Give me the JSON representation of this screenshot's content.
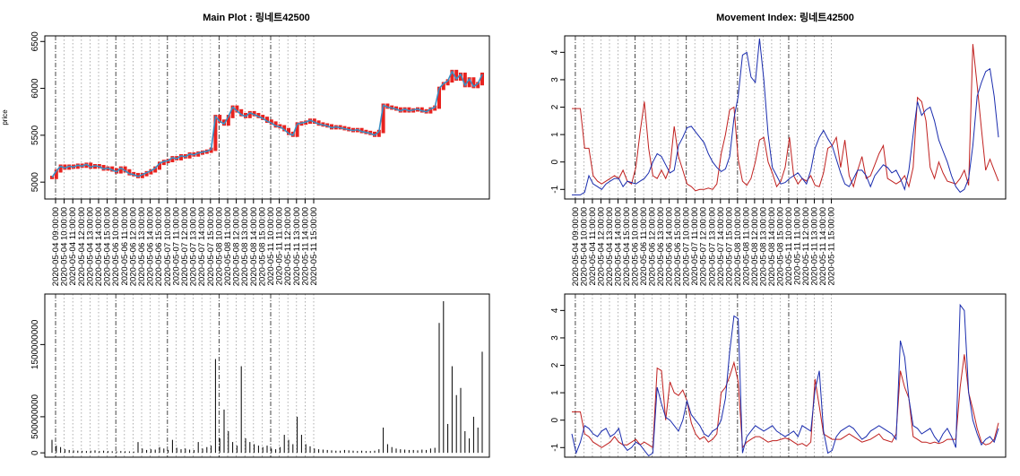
{
  "figure": {
    "main_title": "Main Plot : 링네트42500",
    "movement_title": "Movement Index: 링네트42500"
  },
  "chart_data": [
    {
      "id": "price-panel",
      "type": "line",
      "title": "Main Plot : 링네트42500",
      "ylabel": "price",
      "ylim": [
        4820,
        6560
      ],
      "yticks": [
        5000,
        5500,
        6000,
        6500
      ],
      "grid": true,
      "series": [
        {
          "color": "#3a8fc4",
          "kind": "close-line",
          "values": [
            5050,
            5120,
            5170,
            5150,
            5170,
            5160,
            5180,
            5170,
            5190,
            5160,
            5175,
            5165,
            5140,
            5150,
            5130,
            5110,
            5150,
            5120,
            5090,
            5080,
            5060,
            5080,
            5100,
            5120,
            5150,
            5200,
            5220,
            5230,
            5260,
            5250,
            5280,
            5270,
            5300,
            5290,
            5310,
            5320,
            5330,
            5350,
            5700,
            5650,
            5620,
            5700,
            5800,
            5760,
            5720,
            5700,
            5740,
            5720,
            5700,
            5680,
            5650,
            5630,
            5600,
            5590,
            5560,
            5520,
            5500,
            5620,
            5630,
            5640,
            5660,
            5640,
            5620,
            5610,
            5600,
            5580,
            5590,
            5580,
            5570,
            5560,
            5550,
            5560,
            5540,
            5530,
            5520,
            5500,
            5540,
            5820,
            5800,
            5790,
            5780,
            5760,
            5780,
            5760,
            5770,
            5780,
            5760,
            5750,
            5780,
            5800,
            6000,
            6050,
            6080,
            6180,
            6100,
            6150,
            6030,
            6100,
            6020,
            6050,
            6150
          ]
        },
        {
          "color": "#e8231f",
          "kind": "candle-bars"
        }
      ]
    },
    {
      "id": "volume-panel",
      "type": "bar",
      "ylim": [
        -60000000,
        2200000000
      ],
      "yticks": [
        0,
        500000000,
        1500000000
      ],
      "ytick_labels": [
        "0",
        "500000000",
        "1500000000"
      ],
      "grid": true,
      "series": [
        {
          "color": "#000000",
          "values": [
            180000000,
            100000000,
            80000000,
            50000000,
            40000000,
            35000000,
            30000000,
            28000000,
            25000000,
            30000000,
            35000000,
            25000000,
            30000000,
            25000000,
            22000000,
            20000000,
            25000000,
            22000000,
            20000000,
            18000000,
            150000000,
            60000000,
            40000000,
            50000000,
            45000000,
            80000000,
            60000000,
            40000000,
            180000000,
            70000000,
            50000000,
            60000000,
            45000000,
            40000000,
            150000000,
            60000000,
            80000000,
            100000000,
            1300000000,
            200000000,
            600000000,
            300000000,
            150000000,
            100000000,
            1200000000,
            200000000,
            150000000,
            120000000,
            100000000,
            80000000,
            100000000,
            60000000,
            50000000,
            80000000,
            250000000,
            180000000,
            120000000,
            500000000,
            250000000,
            120000000,
            90000000,
            60000000,
            50000000,
            45000000,
            40000000,
            35000000,
            30000000,
            30000000,
            40000000,
            35000000,
            30000000,
            25000000,
            30000000,
            25000000,
            25000000,
            30000000,
            50000000,
            350000000,
            120000000,
            80000000,
            60000000,
            50000000,
            45000000,
            40000000,
            40000000,
            35000000,
            45000000,
            40000000,
            60000000,
            70000000,
            1800000000,
            2100000000,
            400000000,
            1200000000,
            800000000,
            900000000,
            300000000,
            200000000,
            500000000,
            350000000,
            1400000000
          ]
        }
      ]
    },
    {
      "id": "movement-panel-top",
      "type": "line",
      "title": "Movement Index: 링네트42500",
      "ylim": [
        -1.35,
        4.6
      ],
      "yticks": [
        -1,
        0,
        1,
        2,
        3,
        4
      ],
      "grid": true,
      "series": [
        {
          "color": "#c0201f",
          "values": [
            1.95,
            1.95,
            1.95,
            0.5,
            0.5,
            -0.5,
            -0.7,
            -0.8,
            -0.7,
            -0.6,
            -0.5,
            -0.6,
            -0.3,
            -0.7,
            -0.8,
            -0.2,
            1.1,
            2.2,
            0.5,
            -0.5,
            -0.6,
            -0.3,
            -0.6,
            -0.2,
            1.3,
            0.2,
            -0.3,
            -0.8,
            -0.9,
            -1.05,
            -1.0,
            -1.0,
            -0.95,
            -1.0,
            -0.8,
            0.3,
            1.0,
            1.9,
            2.0,
            0.1,
            -0.7,
            -0.85,
            -0.6,
            0.0,
            0.8,
            0.9,
            0.0,
            -0.4,
            -0.9,
            -0.7,
            -0.2,
            0.9,
            -0.5,
            -0.8,
            -0.6,
            -0.7,
            -0.5,
            -0.85,
            -0.9,
            -0.4,
            0.5,
            0.6,
            0.9,
            -0.2,
            0.8,
            -0.5,
            -0.9,
            -0.3,
            0.2,
            -0.6,
            -0.5,
            -0.1,
            0.3,
            0.6,
            -0.6,
            -0.7,
            -0.8,
            -0.7,
            -0.5,
            -0.9,
            -0.2,
            2.35,
            2.2,
            1.5,
            -0.2,
            -0.6,
            0.0,
            -0.4,
            -0.7,
            -0.75,
            -0.8,
            -0.6,
            -0.3,
            -0.85,
            4.3,
            2.8,
            1.2,
            -0.3,
            0.1,
            -0.3,
            -0.7
          ]
        },
        {
          "color": "#1a2cae",
          "values": [
            -1.2,
            -1.2,
            -1.2,
            -1.1,
            -0.5,
            -0.8,
            -0.9,
            -1.0,
            -0.8,
            -0.7,
            -0.6,
            -0.6,
            -0.9,
            -0.7,
            -0.75,
            -0.8,
            -0.7,
            -0.6,
            -0.4,
            0.0,
            0.3,
            0.2,
            -0.1,
            -0.4,
            -0.3,
            0.6,
            0.9,
            1.25,
            1.3,
            1.1,
            0.9,
            0.7,
            0.3,
            0.0,
            -0.2,
            -0.35,
            -0.25,
            0.2,
            1.6,
            2.4,
            3.9,
            4.0,
            3.1,
            2.9,
            4.5,
            3.0,
            1.0,
            -0.2,
            -0.5,
            -0.8,
            -0.75,
            -0.6,
            -0.5,
            -0.4,
            -0.6,
            -0.8,
            -0.3,
            0.5,
            0.9,
            1.15,
            0.85,
            0.6,
            0.1,
            -0.4,
            -0.8,
            -0.9,
            -0.6,
            -0.3,
            -0.3,
            -0.5,
            -0.9,
            -0.5,
            -0.3,
            -0.1,
            -0.2,
            -0.4,
            -0.3,
            -0.6,
            -1.0,
            -0.3,
            1.0,
            2.2,
            1.7,
            1.9,
            2.0,
            1.5,
            0.8,
            0.4,
            0.0,
            -0.5,
            -0.9,
            -1.1,
            -1.0,
            -0.6,
            0.6,
            2.4,
            2.9,
            3.3,
            3.4,
            2.4,
            0.9
          ]
        }
      ]
    },
    {
      "id": "movement-panel-bottom",
      "type": "line",
      "ylim": [
        -1.35,
        4.6
      ],
      "yticks": [
        -1,
        0,
        1,
        2,
        3,
        4
      ],
      "grid": true,
      "series": [
        {
          "color": "#c0201f",
          "values": [
            0.3,
            0.3,
            0.3,
            -0.5,
            -0.6,
            -0.8,
            -0.9,
            -1.0,
            -0.9,
            -0.8,
            -0.6,
            -0.8,
            -0.9,
            -0.9,
            -0.8,
            -0.7,
            -0.9,
            -0.8,
            -0.9,
            -1.0,
            1.9,
            1.8,
            0.0,
            1.4,
            1.0,
            0.9,
            1.1,
            0.7,
            -0.1,
            -0.5,
            -0.7,
            -0.6,
            -0.8,
            -0.7,
            -0.5,
            1.0,
            1.2,
            1.6,
            2.1,
            1.4,
            -1.0,
            -0.8,
            -0.7,
            -0.6,
            -0.6,
            -0.7,
            -0.8,
            -0.75,
            -0.75,
            -0.7,
            -0.65,
            -0.7,
            -0.8,
            -0.9,
            -0.85,
            -0.95,
            -0.8,
            1.5,
            0.5,
            -0.5,
            -0.6,
            -0.7,
            -0.7,
            -0.7,
            -0.6,
            -0.5,
            -0.6,
            -0.7,
            -0.8,
            -0.75,
            -0.7,
            -0.6,
            -0.5,
            -0.7,
            -0.75,
            -0.8,
            -0.5,
            1.8,
            1.2,
            0.8,
            -0.6,
            -0.7,
            -0.8,
            -0.8,
            -0.85,
            -0.8,
            -0.85,
            -0.8,
            -0.7,
            -0.7,
            -0.7,
            1.2,
            2.4,
            1.0,
            0.4,
            -0.3,
            -0.8,
            -0.9,
            -0.85,
            -0.7,
            -0.1
          ]
        },
        {
          "color": "#1a2cae",
          "values": [
            -0.5,
            -1.2,
            -0.8,
            -0.2,
            -0.3,
            -0.5,
            -0.6,
            -0.4,
            -0.3,
            -0.6,
            -0.5,
            -0.3,
            -0.9,
            -1.1,
            -1.0,
            -0.8,
            -0.9,
            -1.1,
            -1.3,
            -1.2,
            1.2,
            0.6,
            0.1,
            0.0,
            -0.2,
            -0.4,
            0.0,
            0.7,
            0.2,
            0.0,
            -0.2,
            -0.5,
            -0.6,
            -0.4,
            -0.3,
            0.0,
            0.8,
            2.5,
            3.8,
            3.7,
            -1.2,
            -0.6,
            -0.4,
            -0.2,
            -0.3,
            -0.4,
            -0.3,
            -0.2,
            -0.4,
            -0.5,
            -0.6,
            -0.5,
            -0.4,
            -0.6,
            -0.2,
            -0.3,
            -0.4,
            1.1,
            1.8,
            -0.4,
            -1.2,
            -1.1,
            -0.6,
            -0.4,
            -0.3,
            -0.2,
            -0.3,
            -0.5,
            -0.7,
            -0.6,
            -0.4,
            -0.3,
            -0.2,
            -0.3,
            -0.4,
            -0.5,
            -0.7,
            2.9,
            2.3,
            0.8,
            -0.2,
            -0.3,
            -0.5,
            -0.4,
            -0.3,
            -0.6,
            -0.8,
            -0.5,
            -0.3,
            -0.6,
            -1.0,
            4.2,
            4.0,
            1.0,
            0.0,
            -0.5,
            -0.9,
            -0.7,
            -0.6,
            -0.8,
            -0.3
          ]
        }
      ]
    }
  ],
  "time_axis": {
    "tick_labels": [
      "2020-05-04 09:00:00",
      "2020-05-04 10:00:00",
      "2020-05-04 11:00:00",
      "2020-05-04 12:00:00",
      "2020-05-04 13:00:00",
      "2020-05-04 14:00:00",
      "2020-05-04 15:00:00",
      "2020-05-06 10:00:00",
      "2020-05-06 11:00:00",
      "2020-05-06 12:00:00",
      "2020-05-06 13:00:00",
      "2020-05-06 14:00:00",
      "2020-05-06 15:00:00",
      "2020-05-07 10:00:00",
      "2020-05-07 11:00:00",
      "2020-05-07 12:00:00",
      "2020-05-07 13:00:00",
      "2020-05-07 14:00:00",
      "2020-05-07 15:00:00",
      "2020-05-08 10:00:00",
      "2020-05-08 11:00:00",
      "2020-05-08 12:00:00",
      "2020-05-08 13:00:00",
      "2020-05-08 14:00:00",
      "2020-05-08 15:00:00",
      "2020-05-11 10:00:00",
      "2020-05-11 11:00:00",
      "2020-05-11 12:00:00",
      "2020-05-11 13:00:00",
      "2020-05-11 14:00:00",
      "2020-05-11 15:00:00"
    ],
    "day_break_ticks": [
      0,
      7,
      13,
      19,
      25
    ]
  }
}
